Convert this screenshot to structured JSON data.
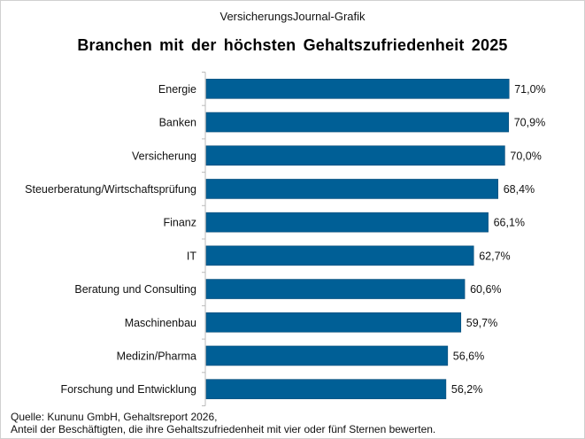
{
  "header": {
    "subtitle": "VersicherungsJournal-Grafik"
  },
  "chart_data": {
    "type": "bar",
    "orientation": "horizontal",
    "title": "Branchen mit der höchsten Gehaltszufriedenheit 2025",
    "categories": [
      "Energie",
      "Banken",
      "Versicherung",
      "Steuerberatung/Wirtschaftsprüfung",
      "Finanz",
      "IT",
      "Beratung und Consulting",
      "Maschinenbau",
      "Medizin/Pharma",
      "Forschung und Entwicklung"
    ],
    "values": [
      71.0,
      70.9,
      70.0,
      68.4,
      66.1,
      62.7,
      60.6,
      59.7,
      56.6,
      56.2
    ],
    "labels": [
      "71,0%",
      "70,9%",
      "70,0%",
      "68,4%",
      "66,1%",
      "62,7%",
      "60,6%",
      "59,7%",
      "56,6%",
      "56,2%"
    ],
    "unit": "%",
    "xlim": [
      0,
      100
    ],
    "grid": false,
    "bar_color": "#005f96"
  },
  "footer": {
    "source": "Quelle: Kununu GmbH, Gehaltsreport 2026,",
    "note": "Anteil der Beschäftigten, die ihre Gehaltszufriedenheit  mit vier oder fünf Sternen bewerten."
  }
}
